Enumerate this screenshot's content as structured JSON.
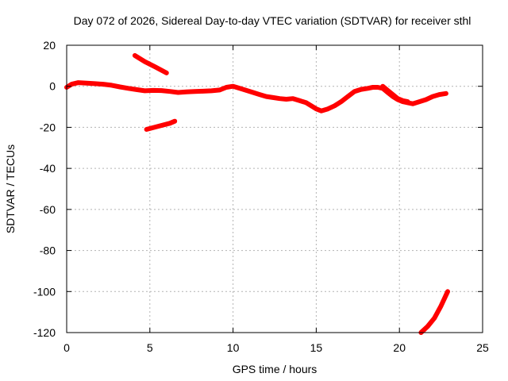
{
  "chart_data": {
    "type": "scatter",
    "title": "Day 072 of 2026, Sidereal Day-to-day VTEC variation (SDTVAR) for receiver sthl",
    "xlabel": "GPS time / hours",
    "ylabel": "SDTVAR / TECUs",
    "xlim": [
      0,
      25
    ],
    "ylim": [
      -120,
      20
    ],
    "xticks": [
      0,
      5,
      10,
      15,
      20,
      25
    ],
    "yticks": [
      20,
      0,
      -20,
      -40,
      -60,
      -80,
      -100,
      -120
    ],
    "grid": true,
    "series_color": "#ff0000",
    "series": [
      {
        "name": "main",
        "points": [
          [
            0.0,
            -0.5
          ],
          [
            0.3,
            1.0
          ],
          [
            0.7,
            1.8
          ],
          [
            1.2,
            1.5
          ],
          [
            1.7,
            1.3
          ],
          [
            2.2,
            1.0
          ],
          [
            2.7,
            0.5
          ],
          [
            3.2,
            -0.3
          ],
          [
            3.7,
            -1.0
          ],
          [
            4.2,
            -1.6
          ],
          [
            4.7,
            -2.2
          ],
          [
            5.2,
            -2.0
          ],
          [
            5.7,
            -2.1
          ],
          [
            6.2,
            -2.5
          ],
          [
            6.7,
            -3.0
          ],
          [
            7.2,
            -2.7
          ],
          [
            7.7,
            -2.5
          ],
          [
            8.2,
            -2.4
          ],
          [
            8.7,
            -2.2
          ],
          [
            9.2,
            -1.8
          ],
          [
            9.6,
            -0.5
          ],
          [
            10.0,
            0.0
          ],
          [
            10.4,
            -1.0
          ],
          [
            10.8,
            -2.0
          ],
          [
            11.2,
            -3.0
          ],
          [
            11.6,
            -4.0
          ],
          [
            12.0,
            -5.0
          ],
          [
            12.4,
            -5.5
          ],
          [
            12.8,
            -6.0
          ],
          [
            13.2,
            -6.3
          ],
          [
            13.6,
            -6.0
          ],
          [
            14.0,
            -7.0
          ],
          [
            14.4,
            -8.0
          ],
          [
            14.8,
            -10.0
          ],
          [
            15.0,
            -11.0
          ],
          [
            15.3,
            -12.0
          ],
          [
            15.7,
            -11.0
          ],
          [
            16.1,
            -9.5
          ],
          [
            16.5,
            -7.5
          ],
          [
            16.9,
            -5.0
          ],
          [
            17.3,
            -2.5
          ],
          [
            17.7,
            -1.5
          ],
          [
            18.1,
            -1.0
          ],
          [
            18.4,
            -0.5
          ],
          [
            18.7,
            -0.5
          ],
          [
            19.0,
            -1.0
          ],
          [
            19.3,
            -3.0
          ],
          [
            19.6,
            -5.0
          ],
          [
            19.9,
            -6.5
          ],
          [
            20.2,
            -7.5
          ],
          [
            20.5,
            -8.0
          ],
          [
            20.8,
            -8.5
          ],
          [
            21.2,
            -7.5
          ],
          [
            21.6,
            -6.5
          ],
          [
            22.0,
            -5.0
          ],
          [
            22.4,
            -4.0
          ],
          [
            22.8,
            -3.5
          ]
        ]
      },
      {
        "name": "arc-upper",
        "points": [
          [
            4.1,
            15.0
          ],
          [
            4.7,
            12.0
          ],
          [
            5.3,
            9.5
          ],
          [
            6.0,
            6.5
          ]
        ]
      },
      {
        "name": "arc-lower",
        "points": [
          [
            4.8,
            -21.0
          ],
          [
            5.5,
            -19.5
          ],
          [
            6.2,
            -18.0
          ],
          [
            6.5,
            -17.0
          ]
        ]
      },
      {
        "name": "arc-dip",
        "points": [
          [
            19.0,
            0.0
          ],
          [
            19.3,
            -2.0
          ],
          [
            19.6,
            -4.0
          ],
          [
            19.9,
            -6.0
          ],
          [
            20.2,
            -7.0
          ],
          [
            20.5,
            -7.5
          ]
        ]
      },
      {
        "name": "arc-low",
        "points": [
          [
            21.3,
            -120.0
          ],
          [
            21.7,
            -117.0
          ],
          [
            22.1,
            -113.0
          ],
          [
            22.5,
            -107.0
          ],
          [
            22.9,
            -100.0
          ]
        ]
      }
    ]
  }
}
